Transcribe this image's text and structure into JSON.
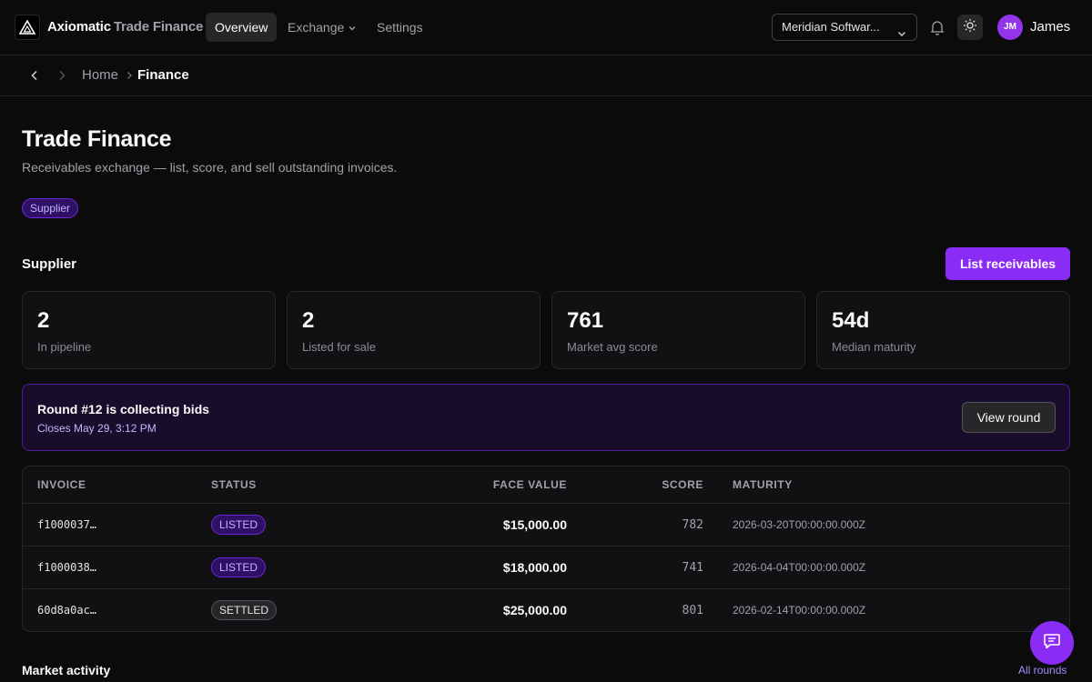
{
  "header": {
    "brand": "Axiomatic",
    "brand_sub": "Trade Finance",
    "nav": [
      {
        "label": "Overview",
        "active": true
      },
      {
        "label": "Exchange",
        "dropdown": true
      },
      {
        "label": "Settings"
      }
    ],
    "org_select": "Meridian Softwar...",
    "user_initials": "JM",
    "user_name": "James",
    "icons": [
      "logo-icon",
      "chevron-down-icon",
      "bell-icon",
      "sun-icon"
    ]
  },
  "breadcrumb": {
    "items": [
      "Home",
      "Finance"
    ]
  },
  "page": {
    "title": "Trade Finance",
    "subtitle": "Receivables exchange — list, score, and sell outstanding invoices.",
    "role_badge": "Supplier"
  },
  "supplier": {
    "section_title": "Supplier",
    "primary_action": "List receivables",
    "stats": [
      {
        "value": "2",
        "label": "In pipeline"
      },
      {
        "value": "2",
        "label": "Listed for sale"
      },
      {
        "value": "761",
        "label": "Market avg score"
      },
      {
        "value": "54d",
        "label": "Median maturity"
      }
    ]
  },
  "round": {
    "title": "Round #12 is collecting bids",
    "closes": "Closes May 29, 3:12 PM",
    "button": "View round"
  },
  "table": {
    "columns": [
      "INVOICE",
      "STATUS",
      "FACE VALUE",
      "SCORE",
      "MATURITY"
    ],
    "rows": [
      {
        "invoice": "f1000037…",
        "status": "LISTED",
        "face_value": "$15,000.00",
        "score": "782",
        "maturity": "2026-03-20T00:00:00.000Z"
      },
      {
        "invoice": "f1000038…",
        "status": "LISTED",
        "face_value": "$18,000.00",
        "score": "741",
        "maturity": "2026-04-04T00:00:00.000Z"
      },
      {
        "invoice": "60d8a0ac…",
        "status": "SETTLED",
        "face_value": "$25,000.00",
        "score": "801",
        "maturity": "2026-02-14T00:00:00.000Z"
      }
    ]
  },
  "market": {
    "title": "Market activity",
    "link": "All rounds"
  },
  "colors": {
    "accent": "#8b2cf5",
    "background": "#0b0b0c",
    "badge_text": "#c4b5fd"
  }
}
